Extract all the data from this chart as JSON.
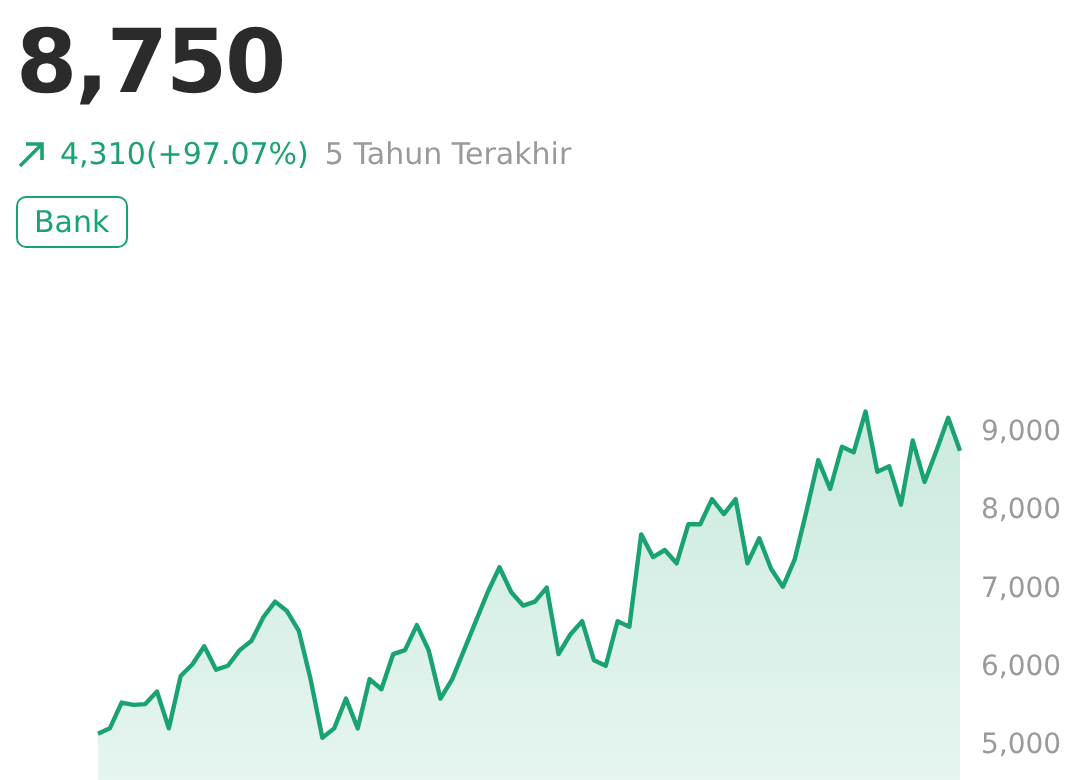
{
  "chart_data": {
    "type": "area",
    "title": "8,750",
    "subtitle": "4,310(+97.07%)",
    "annotations": [
      "5 Tahun Terakhir",
      "Bank"
    ],
    "categories": [
      null,
      null,
      null,
      null,
      null,
      null,
      null,
      null,
      null,
      null,
      null,
      null,
      null,
      null,
      null,
      null,
      null,
      null,
      null,
      null,
      null,
      null,
      null,
      null,
      null,
      null,
      null,
      null,
      null,
      null,
      null,
      null,
      null,
      null,
      null,
      null,
      null,
      null,
      null,
      null,
      null,
      null,
      null,
      null,
      null,
      null,
      null,
      null,
      null,
      null,
      null,
      null,
      null,
      null,
      null,
      null,
      null,
      null,
      null,
      null,
      null,
      null,
      null,
      null,
      null,
      null,
      null,
      null,
      null,
      null,
      null,
      null,
      null,
      null
    ],
    "series": [
      {
        "color": "#1aa370",
        "values": [
          5130,
          5200,
          5530,
          5500,
          5510,
          5670,
          5200,
          5870,
          6020,
          6250,
          5950,
          6000,
          6200,
          6320,
          6620,
          6820,
          6700,
          6450,
          5830,
          5080,
          5200,
          5580,
          5200,
          5830,
          5700,
          6150,
          6200,
          6520,
          6200,
          5580,
          5830,
          6200,
          6570,
          6940,
          7260,
          6940,
          6770,
          6820,
          7000,
          6150,
          6400,
          6570,
          6070,
          6000,
          6570,
          6500,
          7680,
          7390,
          7480,
          7310,
          7810,
          7810,
          8130,
          7940,
          8130,
          7310,
          7630,
          7240,
          7010,
          7360,
          7980,
          8630,
          8260,
          8800,
          8730,
          9250,
          8480,
          8550,
          8060,
          8880,
          8350,
          8750,
          9170,
          8750
        ]
      }
    ],
    "ylim": [
      5000,
      9500
    ],
    "yticks": [
      {
        "value": 5000,
        "label": "5,000"
      },
      {
        "value": 6000,
        "label": "6,000"
      },
      {
        "value": 7000,
        "label": "7,000"
      },
      {
        "value": 8000,
        "label": "8,000"
      },
      {
        "value": 9000,
        "label": "9,000"
      }
    ],
    "grid": false,
    "tick_labels": "y"
  }
}
